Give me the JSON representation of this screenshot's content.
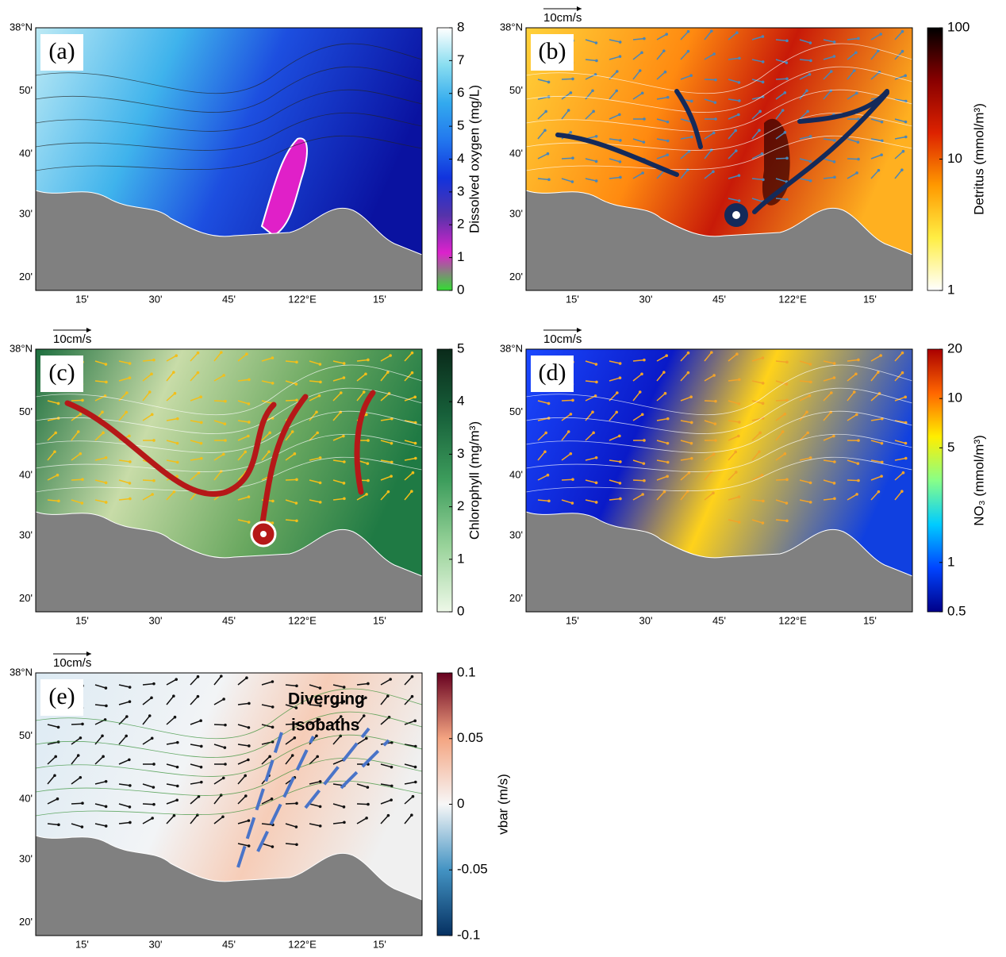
{
  "lat_labels": [
    "38°N",
    "50'",
    "40'",
    "30'",
    "20'"
  ],
  "lon_labels": [
    "15'",
    "30'",
    "45'",
    "122°E",
    "15'"
  ],
  "panels": [
    {
      "label": "(a)",
      "colorbar": {
        "label": "Dissolved oxygen (mg/L)",
        "range": [
          0,
          8
        ],
        "ticks": [
          0,
          1,
          2,
          3,
          4,
          5,
          6,
          7,
          8
        ],
        "colors": [
          "#33dd33",
          "#dd22cc",
          "#5533aa",
          "#1133dd",
          "#2277ee",
          "#33aaee",
          "#88ddf0",
          "#ffffff"
        ]
      }
    },
    {
      "label": "(b)",
      "scale_label": "10cm/s",
      "colorbar": {
        "label": "Detritus (mmol/m³)",
        "range": [
          1,
          100
        ],
        "log": true,
        "ticks": [
          1,
          10,
          100
        ],
        "colors": [
          "#ffffff",
          "#ffee44",
          "#ff9900",
          "#dd2200",
          "#880000",
          "#000000"
        ]
      }
    },
    {
      "label": "(c)",
      "scale_label": "10cm/s",
      "colorbar": {
        "label": "Chlorophyll (mg/m³)",
        "range": [
          0,
          5
        ],
        "ticks": [
          0,
          1,
          2,
          3,
          4,
          5
        ],
        "colors": [
          "#eef8e8",
          "#99d39a",
          "#3d9d5c",
          "#17603a",
          "#0a2a1a"
        ]
      }
    },
    {
      "label": "(d)",
      "scale_label": "10cm/s",
      "colorbar": {
        "label": "NO₃ (mmol/m³)",
        "range": [
          0.5,
          20
        ],
        "log": true,
        "ticks": [
          0.5,
          1,
          5,
          10,
          20
        ],
        "colors": [
          "#000088",
          "#0044ff",
          "#00ccff",
          "#88ff88",
          "#ffee00",
          "#ff6600",
          "#aa0000"
        ]
      }
    },
    {
      "label": "(e)",
      "scale_label": "10cm/s",
      "annotation": [
        "Diverging",
        "isobaths"
      ],
      "colorbar": {
        "label": "vbar (m/s)",
        "range": [
          -0.1,
          0.1
        ],
        "ticks": [
          -0.1,
          -0.05,
          0,
          0.05,
          0.1
        ],
        "colors": [
          "#053061",
          "#4393c3",
          "#f7f7f7",
          "#f4a582",
          "#67001f"
        ]
      }
    }
  ]
}
